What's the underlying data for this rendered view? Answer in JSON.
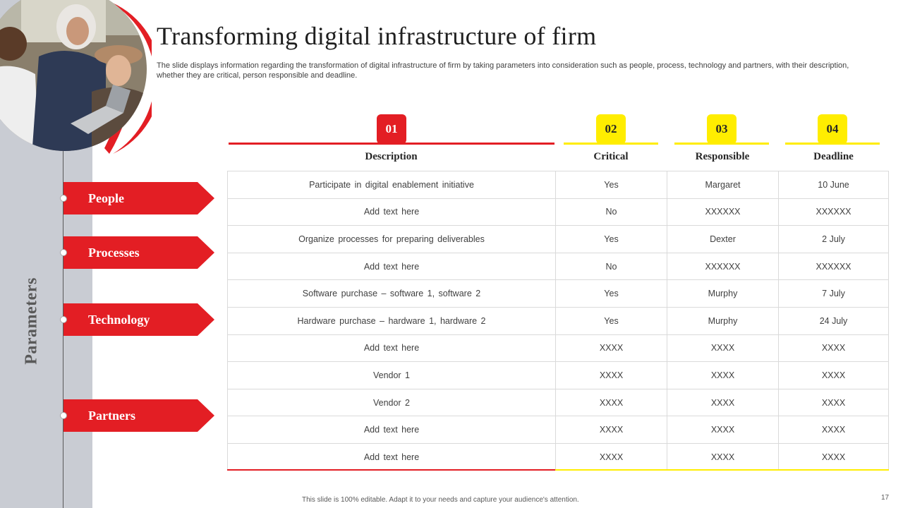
{
  "slide": {
    "title": "Transforming digital infrastructure of firm",
    "subtitle": "The slide displays information regarding the transformation of digital infrastructure of firm by taking parameters into consideration such as people, process, technology and partners, with their description, whether they are critical, person responsible and deadline.",
    "side_label": "Parameters",
    "footer": "This slide is 100% editable. Adapt it to your needs and capture your audience's attention.",
    "page_number": "17"
  },
  "colors": {
    "accent_red": "#e31e24",
    "accent_yellow": "#ffed00",
    "side_band": "#c9ccd3"
  },
  "parameters": [
    "People",
    "Processes",
    "Technology",
    "Partners"
  ],
  "columns": [
    {
      "number": "01",
      "label": "Description"
    },
    {
      "number": "02",
      "label": "Critical"
    },
    {
      "number": "03",
      "label": "Responsible"
    },
    {
      "number": "04",
      "label": "Deadline"
    }
  ],
  "rows": [
    [
      "Participate in digital enablement  initiative",
      "Yes",
      "Margaret",
      "10 June"
    ],
    [
      "Add text here",
      "No",
      "XXXXXX",
      "XXXXXX"
    ],
    [
      "Organize processes for preparing deliverables",
      "Yes",
      "Dexter",
      "2 July"
    ],
    [
      "Add text here",
      "No",
      "XXXXXX",
      "XXXXXX"
    ],
    [
      "Software purchase – software  1, software  2",
      "Yes",
      "Murphy",
      "7 July"
    ],
    [
      "Hardware  purchase – hardware  1, hardware  2",
      "Yes",
      "Murphy",
      "24 July"
    ],
    [
      "Add text here",
      "XXXX",
      "XXXX",
      "XXXX"
    ],
    [
      "Vendor 1",
      "XXXX",
      "XXXX",
      "XXXX"
    ],
    [
      "Vendor 2",
      "XXXX",
      "XXXX",
      "XXXX"
    ],
    [
      "Add text here",
      "XXXX",
      "XXXX",
      "XXXX"
    ],
    [
      "Add text here",
      "XXXX",
      "XXXX",
      "XXXX"
    ]
  ]
}
